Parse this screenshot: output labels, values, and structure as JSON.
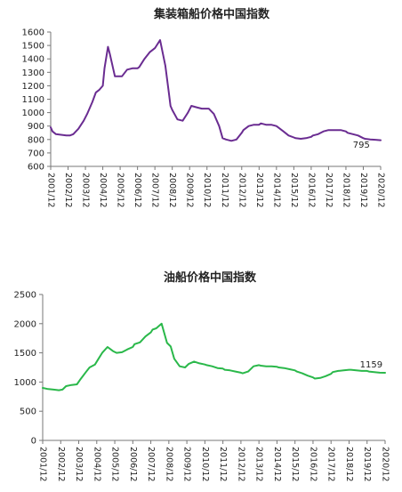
{
  "chart_data": [
    {
      "type": "line",
      "title": "集装箱船价格中国指数",
      "xlabel": "",
      "ylabel": "",
      "ylim": [
        600,
        1600
      ],
      "yticks": [
        600,
        700,
        800,
        900,
        1000,
        1100,
        1200,
        1300,
        1400,
        1500,
        1600
      ],
      "x_tick_labels": [
        "2001/12",
        "2002/12",
        "2003/12",
        "2004/12",
        "2005/12",
        "2006/12",
        "2007/12",
        "2008/12",
        "2009/12",
        "2010/12",
        "2011/12",
        "2012/12",
        "2013/12",
        "2014/12",
        "2015/12",
        "2016/12",
        "2017/12",
        "2018/12",
        "2019/12",
        "2020/12"
      ],
      "xlim": [
        2001.9,
        2020.9
      ],
      "grid": false,
      "annotations": [
        {
          "text": "795",
          "x": 2019.3,
          "y": 740
        }
      ],
      "colors": {
        "line": "#6a2c91"
      },
      "series": [
        {
          "x": [
            2001.9,
            2002.0,
            2002.2,
            2002.5,
            2002.8,
            2003.0,
            2003.2,
            2003.5,
            2003.8,
            2004.0,
            2004.3,
            2004.5,
            2004.7,
            2004.9,
            2005.0,
            2005.2,
            2005.3,
            2005.6,
            2005.9,
            2006.0,
            2006.3,
            2006.6,
            2006.9,
            2007.0,
            2007.3,
            2007.6,
            2007.9,
            2008.0,
            2008.2,
            2008.5,
            2008.7,
            2008.8,
            2008.9,
            2009.2,
            2009.5,
            2009.8,
            2010.0,
            2010.3,
            2010.6,
            2010.9,
            2011.0,
            2011.3,
            2011.6,
            2011.8,
            2012.0,
            2012.3,
            2012.6,
            2012.9,
            2013.0,
            2013.3,
            2013.6,
            2013.9,
            2014.0,
            2014.3,
            2014.6,
            2014.9,
            2015.0,
            2015.3,
            2015.6,
            2015.9,
            2016.0,
            2016.3,
            2016.6,
            2016.9,
            2017.0,
            2017.3,
            2017.6,
            2017.9,
            2018.0,
            2018.3,
            2018.6,
            2018.9,
            2019.0,
            2019.3,
            2019.6,
            2019.9,
            2020.0,
            2020.3,
            2020.6,
            2020.9
          ],
          "y": [
            890,
            860,
            840,
            835,
            830,
            830,
            840,
            880,
            940,
            990,
            1080,
            1150,
            1170,
            1200,
            1330,
            1490,
            1440,
            1270,
            1270,
            1270,
            1320,
            1330,
            1330,
            1340,
            1400,
            1450,
            1480,
            1500,
            1540,
            1350,
            1150,
            1050,
            1020,
            950,
            940,
            1000,
            1050,
            1040,
            1030,
            1030,
            1030,
            990,
            900,
            810,
            800,
            790,
            800,
            850,
            870,
            900,
            910,
            910,
            920,
            910,
            910,
            900,
            890,
            860,
            830,
            815,
            810,
            805,
            810,
            820,
            830,
            840,
            860,
            870,
            870,
            870,
            870,
            860,
            850,
            840,
            830,
            810,
            805,
            800,
            798,
            795
          ]
        }
      ]
    },
    {
      "type": "line",
      "title": "油船价格中国指数",
      "xlabel": "",
      "ylabel": "",
      "ylim": [
        0,
        2500
      ],
      "yticks": [
        0,
        500,
        1000,
        1500,
        2000,
        2500
      ],
      "x_tick_labels": [
        "2001/12",
        "2002/12",
        "2003/12",
        "2004/12",
        "2005/12",
        "2006/12",
        "2007/12",
        "2008/12",
        "2009/12",
        "2010/12",
        "2011/12",
        "2012/12",
        "2013/12",
        "2014/12",
        "2015/12",
        "2016/12",
        "2017/12",
        "2018/12",
        "2019/12",
        "2020/12"
      ],
      "xlim": [
        2001.9,
        2020.9
      ],
      "grid": false,
      "annotations": [
        {
          "text": "1159",
          "x": 2019.5,
          "y": 1250
        }
      ],
      "colors": {
        "line": "#2ab84a"
      },
      "series": [
        {
          "x": [
            2001.9,
            2002.2,
            2002.5,
            2002.8,
            2003.0,
            2003.2,
            2003.5,
            2003.8,
            2004.0,
            2004.3,
            2004.5,
            2004.8,
            2005.0,
            2005.2,
            2005.5,
            2005.8,
            2006.0,
            2006.3,
            2006.6,
            2006.9,
            2007.0,
            2007.3,
            2007.6,
            2007.9,
            2008.0,
            2008.2,
            2008.5,
            2008.8,
            2009.0,
            2009.2,
            2009.5,
            2009.8,
            2010.0,
            2010.3,
            2010.6,
            2010.9,
            2011.0,
            2011.3,
            2011.6,
            2011.9,
            2012.0,
            2012.3,
            2012.6,
            2012.9,
            2013.0,
            2013.3,
            2013.6,
            2013.9,
            2014.0,
            2014.3,
            2014.6,
            2014.9,
            2015.0,
            2015.3,
            2015.6,
            2015.9,
            2016.0,
            2016.3,
            2016.6,
            2016.9,
            2017.0,
            2017.3,
            2017.6,
            2017.9,
            2018.0,
            2018.3,
            2018.6,
            2018.9,
            2019.0,
            2019.3,
            2019.6,
            2019.9,
            2020.0,
            2020.3,
            2020.6,
            2020.9
          ],
          "y": [
            900,
            880,
            870,
            860,
            870,
            930,
            950,
            960,
            1050,
            1170,
            1250,
            1300,
            1400,
            1500,
            1600,
            1530,
            1500,
            1510,
            1560,
            1600,
            1650,
            1680,
            1780,
            1850,
            1900,
            1920,
            2000,
            1670,
            1610,
            1400,
            1270,
            1250,
            1310,
            1350,
            1320,
            1300,
            1290,
            1270,
            1240,
            1230,
            1210,
            1200,
            1180,
            1160,
            1150,
            1180,
            1270,
            1290,
            1280,
            1270,
            1270,
            1260,
            1250,
            1240,
            1220,
            1200,
            1180,
            1150,
            1110,
            1080,
            1060,
            1070,
            1100,
            1140,
            1170,
            1190,
            1200,
            1210,
            1210,
            1200,
            1190,
            1190,
            1180,
            1170,
            1160,
            1159
          ]
        }
      ]
    }
  ]
}
